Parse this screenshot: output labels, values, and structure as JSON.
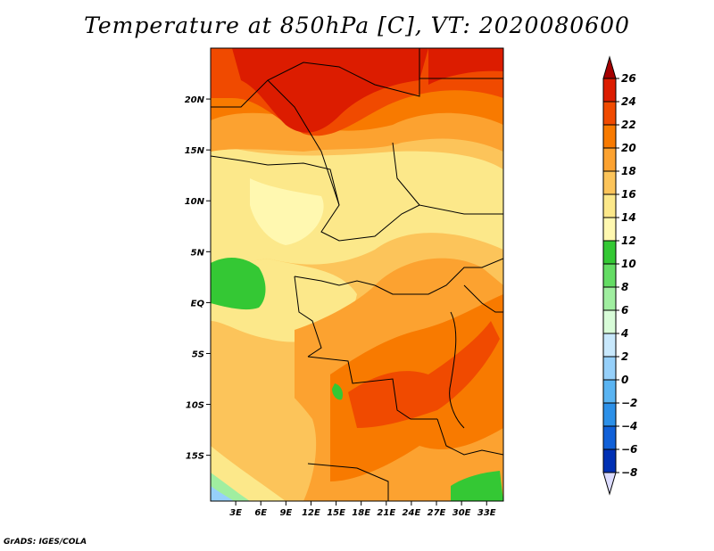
{
  "title": "Temperature at 850hPa [C], VT: 2020080600",
  "credit": "GrADS: IGES/COLA",
  "map": {
    "lon_range": [
      0,
      35
    ],
    "lat_range": [
      -19.5,
      25
    ],
    "lat_ticks": [
      {
        "value": 20,
        "label": "20N"
      },
      {
        "value": 15,
        "label": "15N"
      },
      {
        "value": 10,
        "label": "10N"
      },
      {
        "value": 5,
        "label": "5N"
      },
      {
        "value": 0,
        "label": "EQ"
      },
      {
        "value": -5,
        "label": "5S"
      },
      {
        "value": -10,
        "label": "10S"
      },
      {
        "value": -15,
        "label": "15S"
      }
    ],
    "lon_ticks": [
      {
        "value": 3,
        "label": "3E"
      },
      {
        "value": 6,
        "label": "6E"
      },
      {
        "value": 9,
        "label": "9E"
      },
      {
        "value": 12,
        "label": "12E"
      },
      {
        "value": 15,
        "label": "15E"
      },
      {
        "value": 18,
        "label": "18E"
      },
      {
        "value": 21,
        "label": "21E"
      },
      {
        "value": 24,
        "label": "24E"
      },
      {
        "value": 27,
        "label": "27E"
      },
      {
        "value": 30,
        "label": "30E"
      },
      {
        "value": 33,
        "label": "33E"
      }
    ]
  },
  "colorbar": {
    "levels": [
      "26",
      "24",
      "22",
      "20",
      "18",
      "16",
      "14",
      "12",
      "10",
      "8",
      "6",
      "4",
      "2",
      "0",
      "−2",
      "−4",
      "−6",
      "−8"
    ],
    "colors": [
      "#a50000",
      "#dc1c00",
      "#f04a00",
      "#f87a00",
      "#fca230",
      "#fcc45a",
      "#fce88a",
      "#fff8b0",
      "#34c834",
      "#64dc64",
      "#a0eea0",
      "#d8fcd8",
      "#c8e8fc",
      "#96d0fa",
      "#5ab4f2",
      "#2c90e8",
      "#1060d8",
      "#0030b4",
      "#000080",
      "#dcdcff"
    ]
  }
}
